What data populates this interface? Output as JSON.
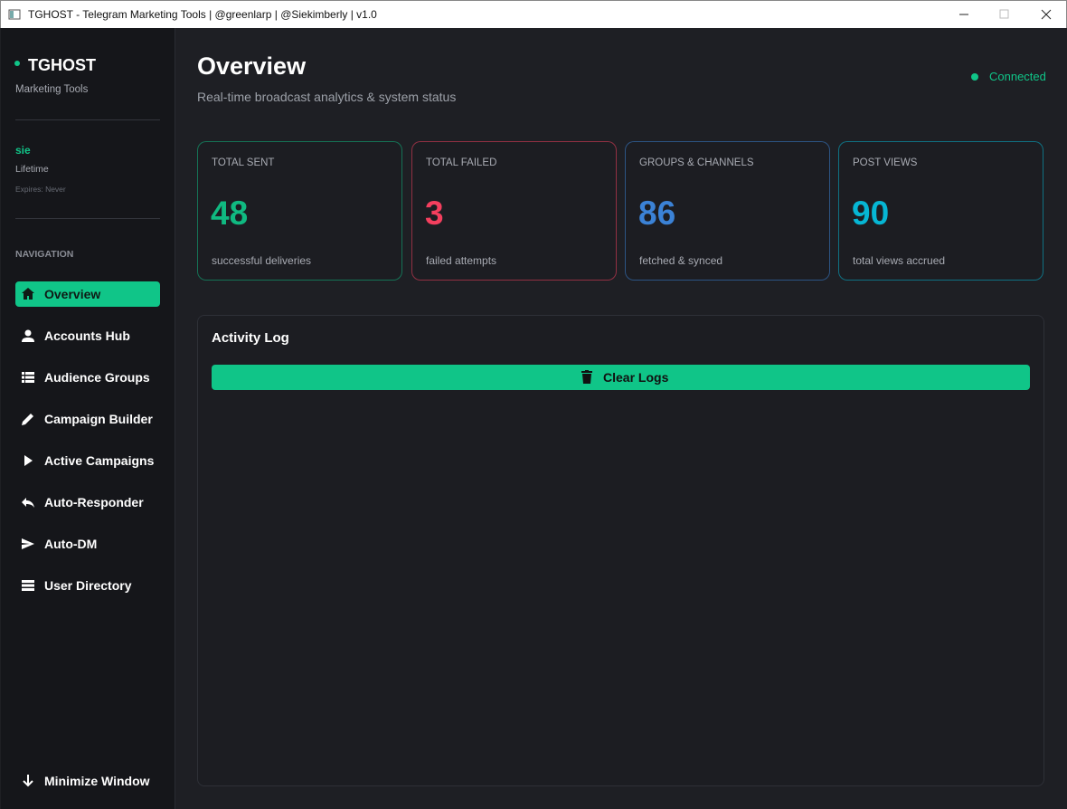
{
  "window": {
    "title": "TGHOST - Telegram Marketing Tools | @greenlarp | @Siekimberly | v1.0"
  },
  "sidebar": {
    "brand": "TGHOST",
    "tagline": "Marketing Tools",
    "user": {
      "name": "sie",
      "plan": "Lifetime",
      "expires": "Expires: Never"
    },
    "nav_heading": "NAVIGATION",
    "nav": [
      {
        "label": "Overview",
        "active": true
      },
      {
        "label": "Accounts Hub",
        "active": false
      },
      {
        "label": "Audience Groups",
        "active": false
      },
      {
        "label": "Campaign Builder",
        "active": false
      },
      {
        "label": "Active Campaigns",
        "active": false
      },
      {
        "label": "Auto-Responder",
        "active": false
      },
      {
        "label": "Auto-DM",
        "active": false
      },
      {
        "label": "User Directory",
        "active": false
      }
    ],
    "footer": "Minimize Window"
  },
  "header": {
    "title": "Overview",
    "subtitle": "Real-time broadcast analytics & system status",
    "status": "Connected"
  },
  "stats": [
    {
      "label": "TOTAL SENT",
      "value": 48,
      "caption": "successful deliveries",
      "color": "#10b981"
    },
    {
      "label": "TOTAL FAILED",
      "value": 3,
      "caption": "failed attempts",
      "color": "#f43f5e"
    },
    {
      "label": "GROUPS & CHANNELS",
      "value": 86,
      "caption": "fetched & synced",
      "color": "#3b82d6"
    },
    {
      "label": "POST VIEWS",
      "value": 90,
      "caption": "total views accrued",
      "color": "#06b6d4"
    }
  ],
  "activity_log": {
    "title": "Activity Log",
    "button": "Clear Logs"
  }
}
